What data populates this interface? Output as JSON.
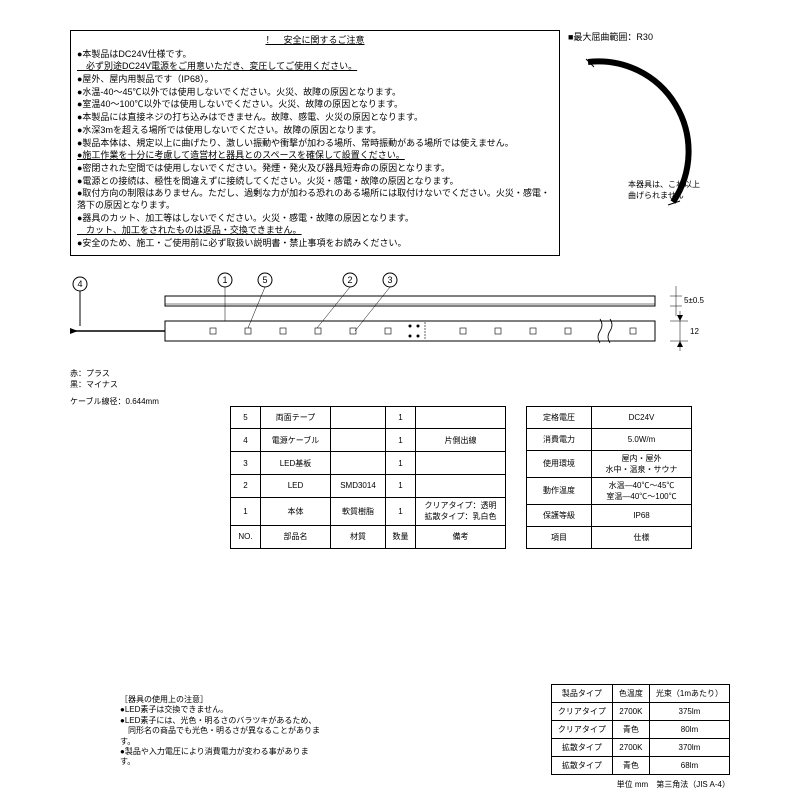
{
  "safety": {
    "title": "！　安全に関するご注意",
    "lines": [
      {
        "t": "●本製品はDC24V仕様です。",
        "u": false
      },
      {
        "t": "　必ず別途DC24V電源をご用意いただき、変圧してご使用ください。",
        "u": true
      },
      {
        "t": "●屋外、屋内用製品です（IP68）。",
        "u": false
      },
      {
        "t": "●水温-40～45℃以外では使用しないでください。火災、故障の原因となります。",
        "u": false
      },
      {
        "t": "●室温40～100℃以外では使用しないでください。火災、故障の原因となります。",
        "u": false
      },
      {
        "t": "●本製品には直接ネジの打ち込みはできません。故障、感電、火災の原因となります。",
        "u": false
      },
      {
        "t": "●水深3mを超える場所では使用しないでください。故障の原因となります。",
        "u": false
      },
      {
        "t": "●製品本体は、規定以上に曲げたり、激しい振動や衝撃が加わる場所、常時振動がある場所では使えません。",
        "u": false
      },
      {
        "t": "●施工作業を十分に考慮して造営材と器具とのスペースを確保して設置ください。",
        "u": true
      },
      {
        "t": "●密閉された空間では使用しないでください。発煙・発火及び器具短寿命の原因となります。",
        "u": false
      },
      {
        "t": "●電源との接続は、極性を間違えずに接続してください。火災・感電・故障の原因となります。",
        "u": false
      },
      {
        "t": "●取付方向の制限はありません。ただし、過剰な力が加わる恐れのある場所には取付けないでください。火災・感電・落下の原因となります。",
        "u": false
      },
      {
        "t": "●器具のカット、加工等はしないでください。火災・感電・故障の原因となります。",
        "u": false
      },
      {
        "t": "　カット、加工をされたものは返品・交換できません。",
        "u": true
      },
      {
        "t": "●安全のため、施工・ご使用前に必ず取扱い説明書・禁止事項をお読みください。",
        "u": false
      }
    ]
  },
  "bend": {
    "title": "■最大屈曲範囲：R30",
    "caption1": "本器具は、これ以上",
    "caption2": "曲げられません"
  },
  "diagram": {
    "callouts": [
      "1",
      "2",
      "3",
      "4",
      "5"
    ],
    "wire_red": "赤：プラス",
    "wire_black": "黒：マイナス",
    "cable_diameter": "ケーブル線径：0.644mm",
    "dim_h": "5±0.5",
    "dim_w": "12"
  },
  "parts_table": {
    "rows": [
      [
        "5",
        "両面テープ",
        "",
        "1",
        ""
      ],
      [
        "4",
        "電源ケーブル",
        "",
        "1",
        "片側出線"
      ],
      [
        "3",
        "LED基板",
        "",
        "1",
        ""
      ],
      [
        "2",
        "LED",
        "SMD3014",
        "1",
        ""
      ],
      [
        "1",
        "本体",
        "軟質樹脂",
        "1",
        "クリアタイプ：透明\n拡散タイプ：乳白色"
      ],
      [
        "NO.",
        "部品名",
        "材質",
        "数量",
        "備考"
      ]
    ],
    "cols_w": [
      30,
      70,
      55,
      30,
      90
    ]
  },
  "spec_table": {
    "rows": [
      [
        "定格電圧",
        "DC24V"
      ],
      [
        "消費電力",
        "5.0W/m"
      ],
      [
        "使用環境",
        "屋内・屋外\n水中・温泉・サウナ"
      ],
      [
        "動作温度",
        "水温―40℃～45℃\n室温―40℃～100℃"
      ],
      [
        "保護等級",
        "IP68"
      ],
      [
        "項目",
        "仕様"
      ]
    ],
    "cols_w": [
      65,
      100
    ]
  },
  "notes": {
    "title": "［器具の使用上の注意］",
    "lines": [
      "●LED素子は交換できません。",
      "●LED素子には、光色・明るさのバラツキがあるため、",
      "　同形名の商品でも光色・明るさが異なることがあります。",
      "●製品や入力電圧により消費電力が変わる事があります。"
    ]
  },
  "type_table": {
    "header": [
      "製品タイプ",
      "色温度",
      "光束（1mあたり）"
    ],
    "rows": [
      [
        "クリアタイプ",
        "2700K",
        "375lm"
      ],
      [
        "クリアタイプ",
        "青色",
        "80lm"
      ],
      [
        "拡散タイプ",
        "2700K",
        "370lm"
      ],
      [
        "拡散タイプ",
        "青色",
        "68lm"
      ]
    ]
  },
  "footer": "単位 mm　第三角法（JIS A-4）"
}
